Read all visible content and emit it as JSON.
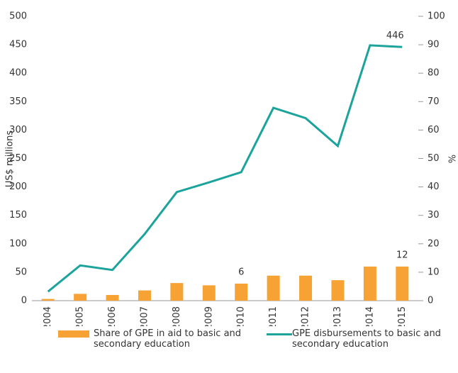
{
  "chart_data": {
    "type": "bar_line",
    "categories": [
      "2004",
      "2005",
      "2006",
      "2007",
      "2008",
      "2009",
      "2010",
      "2011",
      "2012",
      "2013",
      "2014",
      "2015"
    ],
    "series": [
      {
        "name": "Share of GPE in aid to basic and secondary education",
        "color": "#f7a234",
        "type": "bar",
        "axis": "y2",
        "values": [
          0.6,
          2.4,
          2,
          3.6,
          6.2,
          5.4,
          6,
          8.8,
          8.8,
          7.2,
          12,
          12
        ],
        "value_labels": [
          null,
          null,
          null,
          null,
          null,
          null,
          "6",
          null,
          null,
          null,
          null,
          "12"
        ]
      },
      {
        "name": "GPE disbursements to basic and secondary education",
        "color": "#1ba39c",
        "type": "line",
        "axis": "y",
        "values": [
          16,
          62,
          54,
          117,
          191,
          208,
          226,
          339,
          321,
          272,
          449,
          446
        ],
        "value_labels": [
          null,
          null,
          null,
          null,
          null,
          null,
          null,
          null,
          null,
          null,
          null,
          "446"
        ]
      }
    ],
    "y_label": "US$ millions",
    "y2_label": "%",
    "ylim": [
      0,
      500
    ],
    "yticks": [
      0,
      50,
      100,
      150,
      200,
      250,
      300,
      350,
      400,
      450,
      500
    ],
    "y2lim": [
      0,
      100
    ],
    "y2ticks": [
      0,
      10,
      20,
      30,
      40,
      50,
      60,
      70,
      80,
      90,
      100
    ]
  }
}
